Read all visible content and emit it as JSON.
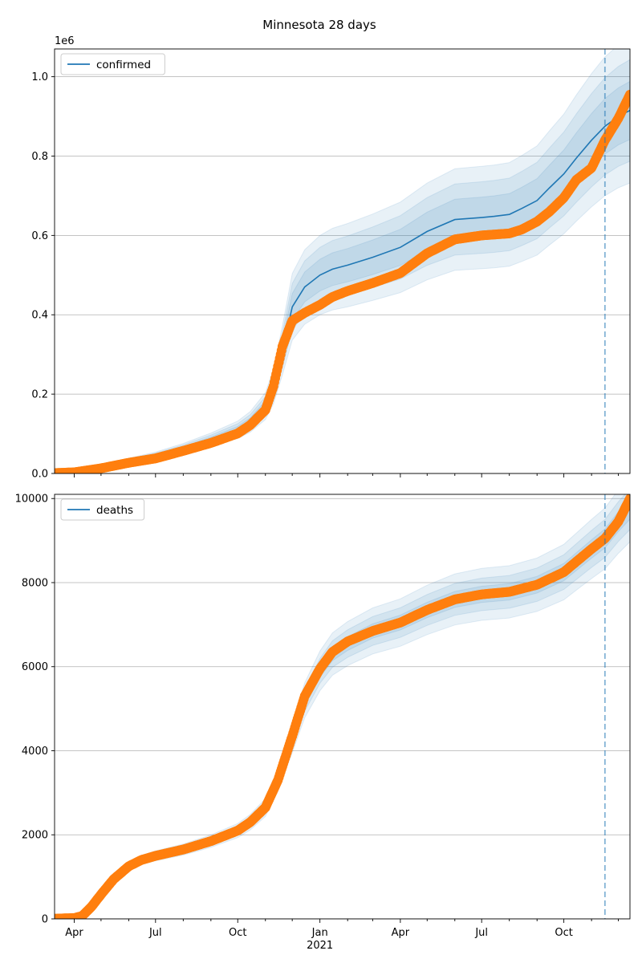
{
  "figure_title": "Minnesota 28 days",
  "colors": {
    "model": "#1f77b4",
    "observed": "#ff7f0e",
    "band": "#1f77b4",
    "grid": "#b0b0b0",
    "forecast_line": "#1f77b4"
  },
  "chart_data": [
    {
      "type": "line",
      "name": "confirmed-panel",
      "legend": "confirmed",
      "legend_position": "top-left",
      "offset_label": "1e6",
      "x_start": "2020-03-10",
      "x_end": "2021-12-14",
      "forecast_date": "2021-11-16",
      "ylim": [
        0,
        1.07
      ],
      "yticks": [
        0,
        0.2,
        0.4,
        0.6,
        0.8,
        1.0
      ],
      "ytick_labels": [
        "0.0",
        "0.2",
        "0.4",
        "0.6",
        "0.8",
        "1.0"
      ],
      "xticks": [],
      "grid": "y",
      "model": {
        "name": "confirmed",
        "x": [
          "2020-03-10",
          "2020-04-01",
          "2020-05-01",
          "2020-06-01",
          "2020-07-01",
          "2020-08-01",
          "2020-09-01",
          "2020-10-01",
          "2020-10-15",
          "2020-11-01",
          "2020-11-10",
          "2020-11-20",
          "2020-12-01",
          "2020-12-15",
          "2021-01-01",
          "2021-01-15",
          "2021-02-01",
          "2021-03-01",
          "2021-04-01",
          "2021-05-01",
          "2021-06-01",
          "2021-07-01",
          "2021-07-15",
          "2021-08-01",
          "2021-08-15",
          "2021-09-01",
          "2021-09-15",
          "2021-10-01",
          "2021-10-15",
          "2021-11-01",
          "2021-11-16",
          "2021-12-01",
          "2021-12-14"
        ],
        "y": [
          0.002,
          0.005,
          0.017,
          0.032,
          0.045,
          0.063,
          0.085,
          0.11,
          0.13,
          0.17,
          0.22,
          0.31,
          0.42,
          0.47,
          0.5,
          0.515,
          0.525,
          0.545,
          0.57,
          0.61,
          0.64,
          0.645,
          0.648,
          0.653,
          0.668,
          0.688,
          0.72,
          0.755,
          0.795,
          0.84,
          0.875,
          0.9,
          0.915
        ]
      },
      "band_scale": [
        0.08,
        0.14,
        0.2
      ],
      "observed": {
        "x": [
          "2020-03-10",
          "2020-04-01",
          "2020-05-01",
          "2020-06-01",
          "2020-07-01",
          "2020-08-01",
          "2020-09-01",
          "2020-10-01",
          "2020-10-15",
          "2020-11-01",
          "2020-11-10",
          "2020-11-20",
          "2020-12-01",
          "2020-12-15",
          "2021-01-01",
          "2021-01-15",
          "2021-02-01",
          "2021-03-01",
          "2021-04-01",
          "2021-05-01",
          "2021-06-01",
          "2021-07-01",
          "2021-08-01",
          "2021-08-15",
          "2021-09-01",
          "2021-09-15",
          "2021-10-01",
          "2021-10-15",
          "2021-11-01",
          "2021-11-16",
          "2021-12-01",
          "2021-12-14"
        ],
        "y": [
          0.001,
          0.003,
          0.013,
          0.027,
          0.038,
          0.057,
          0.077,
          0.101,
          0.122,
          0.16,
          0.22,
          0.32,
          0.385,
          0.405,
          0.425,
          0.445,
          0.46,
          0.48,
          0.505,
          0.555,
          0.59,
          0.6,
          0.605,
          0.615,
          0.635,
          0.66,
          0.695,
          0.74,
          0.77,
          0.84,
          0.895,
          0.955
        ]
      }
    },
    {
      "type": "line",
      "name": "deaths-panel",
      "legend": "deaths",
      "legend_position": "top-left",
      "offset_label": "",
      "x_start": "2020-03-10",
      "x_end": "2021-12-14",
      "forecast_date": "2021-11-16",
      "ylim": [
        0,
        10100
      ],
      "yticks": [
        0,
        2000,
        4000,
        6000,
        8000,
        10000
      ],
      "ytick_labels": [
        "0",
        "2000",
        "4000",
        "6000",
        "8000",
        "10000"
      ],
      "xticks": [
        "Apr",
        "Jul",
        "Oct",
        "Jan",
        "Apr",
        "Jul",
        "Oct"
      ],
      "xtick_dates": [
        "2020-04-01",
        "2020-07-01",
        "2020-10-01",
        "2021-01-01",
        "2021-04-01",
        "2021-07-01",
        "2021-10-01"
      ],
      "year_label": "2021",
      "grid": "y",
      "model": {
        "name": "deaths",
        "x": [
          "2020-03-10",
          "2020-04-01",
          "2020-04-10",
          "2020-04-20",
          "2020-05-01",
          "2020-05-15",
          "2020-06-01",
          "2020-06-15",
          "2020-07-01",
          "2020-08-01",
          "2020-09-01",
          "2020-10-01",
          "2020-10-15",
          "2020-11-01",
          "2020-11-15",
          "2020-12-01",
          "2020-12-15",
          "2021-01-01",
          "2021-01-15",
          "2021-02-01",
          "2021-03-01",
          "2021-04-01",
          "2021-05-01",
          "2021-06-01",
          "2021-07-01",
          "2021-08-01",
          "2021-09-01",
          "2021-10-01",
          "2021-10-15",
          "2021-11-01",
          "2021-11-16",
          "2021-12-01",
          "2021-12-14"
        ],
        "y": [
          10,
          30,
          80,
          300,
          600,
          950,
          1250,
          1400,
          1500,
          1650,
          1850,
          2100,
          2300,
          2650,
          3300,
          4300,
          5200,
          5900,
          6300,
          6550,
          6850,
          7050,
          7350,
          7600,
          7720,
          7780,
          7950,
          8250,
          8500,
          8800,
          9050,
          9450,
          9750
        ]
      },
      "band_scale": [
        0.025,
        0.05,
        0.08
      ],
      "observed": {
        "x": [
          "2020-03-10",
          "2020-04-01",
          "2020-04-10",
          "2020-04-20",
          "2020-05-01",
          "2020-05-15",
          "2020-06-01",
          "2020-06-15",
          "2020-07-01",
          "2020-08-01",
          "2020-09-01",
          "2020-10-01",
          "2020-10-15",
          "2020-11-01",
          "2020-11-15",
          "2020-12-01",
          "2020-12-15",
          "2021-01-01",
          "2021-01-15",
          "2021-02-01",
          "2021-03-01",
          "2021-04-01",
          "2021-05-01",
          "2021-06-01",
          "2021-07-01",
          "2021-08-01",
          "2021-09-01",
          "2021-10-01",
          "2021-10-15",
          "2021-11-01",
          "2021-11-16",
          "2021-12-01",
          "2021-12-14"
        ],
        "y": [
          5,
          20,
          70,
          280,
          580,
          940,
          1250,
          1400,
          1500,
          1650,
          1850,
          2100,
          2300,
          2650,
          3300,
          4350,
          5300,
          5950,
          6350,
          6600,
          6850,
          7050,
          7350,
          7600,
          7720,
          7780,
          7950,
          8250,
          8500,
          8800,
          9050,
          9450,
          10000
        ]
      }
    }
  ]
}
